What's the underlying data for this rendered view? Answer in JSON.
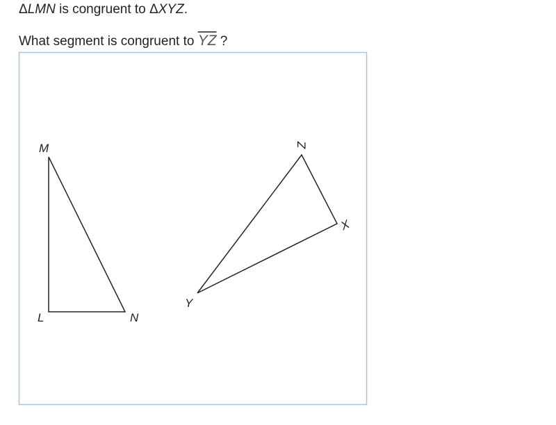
{
  "statement": [
    "Δ",
    "LMN",
    " is congruent to ",
    "Δ",
    "XYZ",
    "."
  ],
  "question": {
    "text": "What segment is congruent to ",
    "segment": "YZ",
    "end": " ?"
  },
  "figure": {
    "labels": [
      "M",
      "L",
      "N",
      "Z",
      "X",
      "Y"
    ]
  }
}
